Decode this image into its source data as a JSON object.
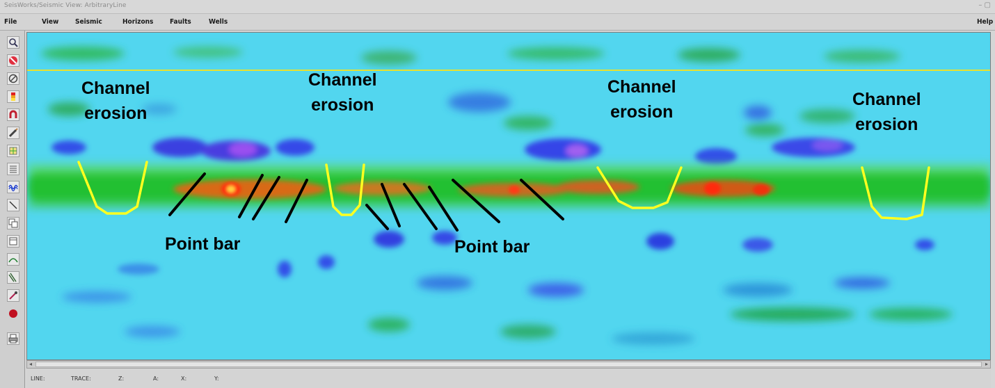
{
  "window": {
    "title": "SeisWorks/Seismic View: ArbitraryLine",
    "controls": "– ▢"
  },
  "menu": {
    "items": [
      "File",
      "View",
      "Seismic",
      "Horizons",
      "Faults",
      "Wells"
    ],
    "help": "Help"
  },
  "toolbar": {
    "tools": [
      "zoom-icon",
      "no-entry-icon",
      "cancel-icon",
      "color-bar-icon",
      "magnet-icon",
      "pencil-icon",
      "pick-grid-icon",
      "horizon-list-icon",
      "wavelet-icon",
      "line-draw-icon",
      "copy-icon",
      "window-icon",
      "horizon-curve-icon",
      "fault-lines-icon",
      "edit-tool-icon",
      "record-icon",
      "print-icon"
    ]
  },
  "status": {
    "labels": [
      "LINE:",
      "TRACE:",
      "Z:",
      "A:",
      "X:",
      "Y:"
    ]
  },
  "annotations": {
    "channel_erosion": [
      {
        "line1": "Channel",
        "line2": "erosion"
      },
      {
        "line1": "Channel",
        "line2": "erosion"
      },
      {
        "line1": "Channel",
        "line2": "erosion"
      },
      {
        "line1": "Channel",
        "line2": "erosion"
      }
    ],
    "point_bar": [
      "Point bar",
      "Point bar"
    ]
  },
  "colors": {
    "background_low": "#50d8f0",
    "trough": "#3050e8",
    "trough_strong": "#7040e0",
    "peak_green": "#20c030",
    "peak_orange": "#e05810",
    "peak_red": "#ff2a10",
    "channel_outline": "#ffff20",
    "horizon_line": "#e8e030"
  }
}
